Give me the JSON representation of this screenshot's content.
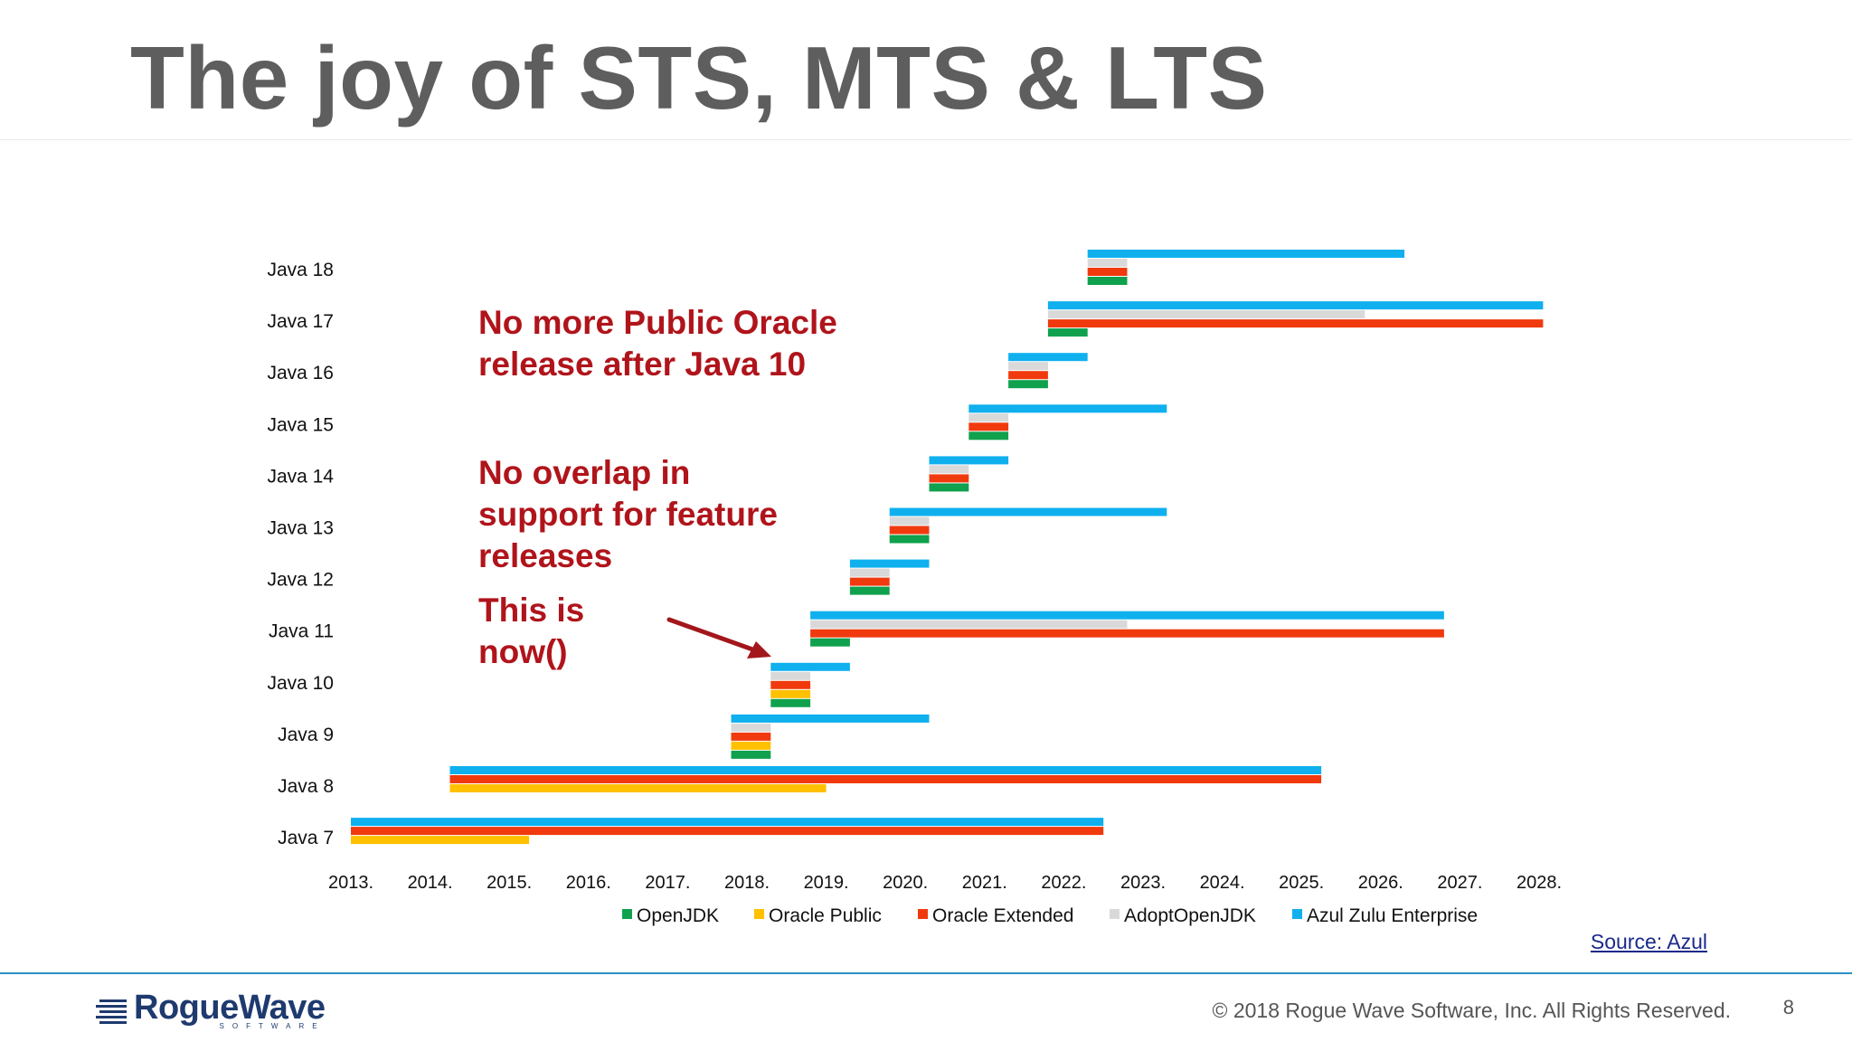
{
  "slide": {
    "title": "The joy of STS, MTS & LTS",
    "annotations": [
      {
        "lines": [
          "No more Public Oracle",
          "release after Java 10"
        ]
      },
      {
        "lines": [
          "No overlap in",
          "support for feature",
          "releases"
        ]
      },
      {
        "lines": [
          "This is",
          "now()"
        ]
      }
    ],
    "source_label": "Source: Azul",
    "footer": {
      "logo_text": "RogueWave",
      "logo_subtext": "SOFTWARE",
      "copyright": "© 2018 Rogue Wave Software, Inc. All Rights Reserved.",
      "page_number": "8"
    }
  },
  "colors": {
    "OpenJDK": "#0fa14d",
    "Oracle Public": "#ffc000",
    "Oracle Extended": "#f03a0e",
    "AdoptOpenJDK": "#d9d9d9",
    "Azul Zulu Enterprise": "#10b0ee",
    "annotation": "#b0141b",
    "title": "#5e5e5e",
    "arrow": "#a3171c"
  },
  "chart_data": {
    "type": "gantt",
    "title": "",
    "xlabel": "",
    "ylabel": "",
    "x_range": [
      2013,
      2028
    ],
    "x_ticks": [
      "2013.",
      "2014.",
      "2015.",
      "2016.",
      "2017.",
      "2018.",
      "2019.",
      "2020.",
      "2021.",
      "2022.",
      "2023.",
      "2024.",
      "2025.",
      "2026.",
      "2027.",
      "2028."
    ],
    "legend": [
      "OpenJDK",
      "Oracle Public",
      "Oracle Extended",
      "AdoptOpenJDK",
      "Azul Zulu Enterprise"
    ],
    "legend_position": "bottom",
    "series_order": [
      "Azul Zulu Enterprise",
      "AdoptOpenJDK",
      "Oracle Extended",
      "Oracle Public",
      "OpenJDK"
    ],
    "categories": [
      {
        "name": "Java 18",
        "bars": [
          {
            "series": "Azul Zulu Enterprise",
            "start": 2022.3,
            "end": 2026.3
          },
          {
            "series": "AdoptOpenJDK",
            "start": 2022.3,
            "end": 2022.8
          },
          {
            "series": "Oracle Extended",
            "start": 2022.3,
            "end": 2022.8
          },
          {
            "series": "OpenJDK",
            "start": 2022.3,
            "end": 2022.8
          }
        ]
      },
      {
        "name": "Java 17",
        "bars": [
          {
            "series": "Azul Zulu Enterprise",
            "start": 2021.8,
            "end": 2028.05
          },
          {
            "series": "AdoptOpenJDK",
            "start": 2021.8,
            "end": 2025.8
          },
          {
            "series": "Oracle Extended",
            "start": 2021.8,
            "end": 2028.05
          },
          {
            "series": "OpenJDK",
            "start": 2021.8,
            "end": 2022.3
          }
        ]
      },
      {
        "name": "Java 16",
        "bars": [
          {
            "series": "Azul Zulu Enterprise",
            "start": 2021.3,
            "end": 2022.3
          },
          {
            "series": "AdoptOpenJDK",
            "start": 2021.3,
            "end": 2021.8
          },
          {
            "series": "Oracle Extended",
            "start": 2021.3,
            "end": 2021.8
          },
          {
            "series": "OpenJDK",
            "start": 2021.3,
            "end": 2021.8
          }
        ]
      },
      {
        "name": "Java 15",
        "bars": [
          {
            "series": "Azul Zulu Enterprise",
            "start": 2020.8,
            "end": 2023.3
          },
          {
            "series": "AdoptOpenJDK",
            "start": 2020.8,
            "end": 2021.3
          },
          {
            "series": "Oracle Extended",
            "start": 2020.8,
            "end": 2021.3
          },
          {
            "series": "OpenJDK",
            "start": 2020.8,
            "end": 2021.3
          }
        ]
      },
      {
        "name": "Java 14",
        "bars": [
          {
            "series": "Azul Zulu Enterprise",
            "start": 2020.3,
            "end": 2021.3
          },
          {
            "series": "AdoptOpenJDK",
            "start": 2020.3,
            "end": 2020.8
          },
          {
            "series": "Oracle Extended",
            "start": 2020.3,
            "end": 2020.8
          },
          {
            "series": "OpenJDK",
            "start": 2020.3,
            "end": 2020.8
          }
        ]
      },
      {
        "name": "Java 13",
        "bars": [
          {
            "series": "Azul Zulu Enterprise",
            "start": 2019.8,
            "end": 2023.3
          },
          {
            "series": "AdoptOpenJDK",
            "start": 2019.8,
            "end": 2020.3
          },
          {
            "series": "Oracle Extended",
            "start": 2019.8,
            "end": 2020.3
          },
          {
            "series": "OpenJDK",
            "start": 2019.8,
            "end": 2020.3
          }
        ]
      },
      {
        "name": "Java 12",
        "bars": [
          {
            "series": "Azul Zulu Enterprise",
            "start": 2019.3,
            "end": 2020.3
          },
          {
            "series": "AdoptOpenJDK",
            "start": 2019.3,
            "end": 2019.8
          },
          {
            "series": "Oracle Extended",
            "start": 2019.3,
            "end": 2019.8
          },
          {
            "series": "OpenJDK",
            "start": 2019.3,
            "end": 2019.8
          }
        ]
      },
      {
        "name": "Java 11",
        "bars": [
          {
            "series": "Azul Zulu Enterprise",
            "start": 2018.8,
            "end": 2026.8
          },
          {
            "series": "AdoptOpenJDK",
            "start": 2018.8,
            "end": 2022.8
          },
          {
            "series": "Oracle Extended",
            "start": 2018.8,
            "end": 2026.8
          },
          {
            "series": "OpenJDK",
            "start": 2018.8,
            "end": 2019.3
          }
        ]
      },
      {
        "name": "Java 10",
        "bars": [
          {
            "series": "Azul Zulu Enterprise",
            "start": 2018.3,
            "end": 2019.3
          },
          {
            "series": "AdoptOpenJDK",
            "start": 2018.3,
            "end": 2018.8
          },
          {
            "series": "Oracle Extended",
            "start": 2018.3,
            "end": 2018.8
          },
          {
            "series": "Oracle Public",
            "start": 2018.3,
            "end": 2018.8
          },
          {
            "series": "OpenJDK",
            "start": 2018.3,
            "end": 2018.8
          }
        ]
      },
      {
        "name": "Java 9",
        "bars": [
          {
            "series": "Azul Zulu Enterprise",
            "start": 2017.8,
            "end": 2020.3
          },
          {
            "series": "AdoptOpenJDK",
            "start": 2017.8,
            "end": 2018.3
          },
          {
            "series": "Oracle Extended",
            "start": 2017.8,
            "end": 2018.3
          },
          {
            "series": "Oracle Public",
            "start": 2017.8,
            "end": 2018.3
          },
          {
            "series": "OpenJDK",
            "start": 2017.8,
            "end": 2018.3
          }
        ]
      },
      {
        "name": "Java 8",
        "bars": [
          {
            "series": "Azul Zulu Enterprise",
            "start": 2014.25,
            "end": 2025.25
          },
          {
            "series": "Oracle Extended",
            "start": 2014.25,
            "end": 2025.25
          },
          {
            "series": "Oracle Public",
            "start": 2014.25,
            "end": 2019.0
          }
        ]
      },
      {
        "name": "Java 7",
        "bars": [
          {
            "series": "Azul Zulu Enterprise",
            "start": 2013.0,
            "end": 2022.5
          },
          {
            "series": "Oracle Extended",
            "start": 2013.0,
            "end": 2022.5
          },
          {
            "series": "Oracle Public",
            "start": 2013.0,
            "end": 2015.25
          }
        ]
      }
    ]
  }
}
